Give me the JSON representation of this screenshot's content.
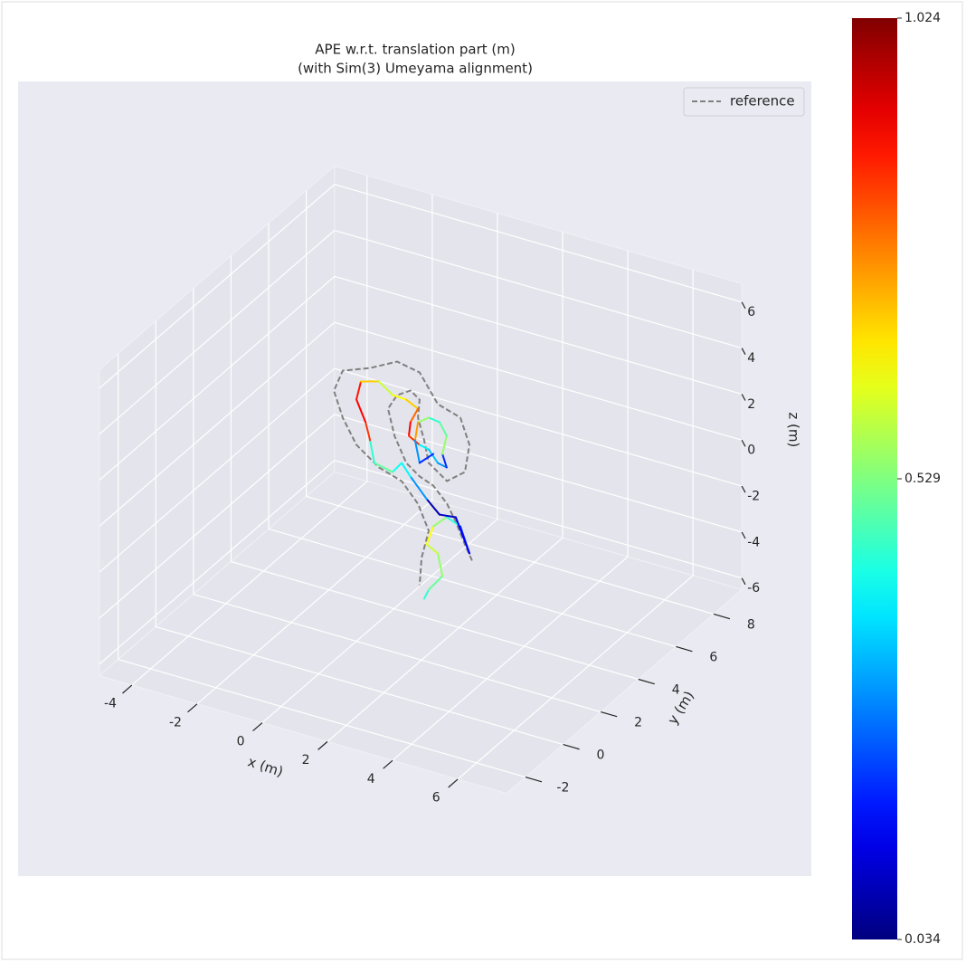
{
  "chart_data": {
    "type": "line3d",
    "title": [
      "APE w.r.t. translation part (m)",
      "(with Sim(3) Umeyama alignment)"
    ],
    "xlabel": "x (m)",
    "ylabel": "y (m)",
    "zlabel": "z (m)",
    "xlim": [
      -5,
      7.5
    ],
    "ylim": [
      -3,
      9.5
    ],
    "zlim": [
      -6.5,
      6.8
    ],
    "xticks": [
      -4,
      -2,
      0,
      2,
      4,
      6
    ],
    "yticks": [
      -2,
      0,
      2,
      4,
      6,
      8
    ],
    "zticks": [
      -6,
      -4,
      -2,
      0,
      2,
      4,
      6
    ],
    "grid": true,
    "legend": "upper right",
    "colormap": "jet",
    "colorbar": {
      "lim": [
        0.034,
        1.024
      ],
      "ticks": [
        0.034,
        0.529,
        1.024
      ]
    },
    "series": [
      {
        "name": "reference",
        "color": "#808080",
        "linestyle": "dashed",
        "x": [
          2.83,
          2.61,
          2.33,
          2.06,
          1.64,
          1.22,
          0.81,
          0.45,
          0.25,
          0.53,
          0.94,
          1.22,
          1.17,
          1.36,
          1.5,
          2.06,
          2.61,
          2.75,
          2.47,
          1.78,
          1.22,
          0.53,
          -0.3,
          -1.14,
          -1.41,
          -1.14,
          -0.72,
          -0.03,
          0.67,
          1.17,
          1.5,
          1.28,
          1.22
        ],
        "y": [
          3.25,
          3.25,
          3.25,
          3.25,
          3.25,
          3.25,
          3.25,
          3.25,
          3.25,
          3.25,
          3.25,
          3.25,
          3.25,
          3.25,
          3.25,
          3.25,
          3.25,
          3.25,
          3.25,
          3.25,
          3.25,
          3.25,
          3.25,
          3.25,
          3.25,
          3.25,
          3.25,
          3.25,
          3.25,
          3.25,
          3.25,
          3.25,
          3.25
        ],
        "z": [
          -2.72,
          -2.11,
          -1.24,
          -0.56,
          0.05,
          0.28,
          0.7,
          1.73,
          2.83,
          3.53,
          3.9,
          3.62,
          2.81,
          1.91,
          0.98,
          0.42,
          1.04,
          2.28,
          3.35,
          3.65,
          4.8,
          4.99,
          4.37,
          3.91,
          2.93,
          1.87,
          0.86,
          0.16,
          -0.15,
          -0.93,
          -1.97,
          -3.24,
          -4.45
        ]
      },
      {
        "x": [
          1.36,
          1.5,
          1.92,
          1.78,
          1.44,
          1.64,
          2.05,
          2.47,
          2.75,
          2.33,
          1.83,
          1.44,
          0.94,
          0.67,
          0.39,
          -0.17,
          -0.3,
          -0.44,
          -0.72,
          -0.58,
          -0.03,
          0.39,
          0.81,
          1.17,
          0.94,
          0.89,
          1.22,
          1.5,
          1.78,
          2.05,
          1.92,
          2.05,
          1.83,
          1.5,
          1.17,
          1.08,
          1.22,
          1.64
        ],
        "y": [
          3.25,
          3.25,
          3.25,
          3.25,
          3.25,
          3.25,
          3.25,
          3.25,
          3.25,
          3.25,
          3.25,
          3.25,
          3.25,
          3.25,
          3.25,
          3.25,
          3.25,
          3.25,
          3.25,
          3.25,
          3.25,
          3.25,
          3.25,
          3.25,
          3.25,
          3.25,
          3.25,
          3.25,
          3.25,
          3.25,
          3.25,
          3.25,
          3.25,
          3.25,
          3.25,
          3.25,
          3.25,
          3.25
        ],
        "z": [
          -4.98,
          -4.53,
          -3.77,
          -2.84,
          -2.58,
          -1.72,
          -1.15,
          -1.38,
          -2.44,
          -1.04,
          -1.13,
          -0.62,
          0.16,
          0.64,
          0.13,
          0.3,
          1.23,
          1.96,
          2.83,
          3.67,
          3.9,
          3.48,
          3.45,
          3.2,
          2.52,
          1.91,
          1.65,
          1.57,
          1.09,
          1.01,
          1.54,
          2.39,
          2.89,
          2.95,
          2.61,
          1.79,
          0.87,
          1.43
        ],
        "error": [
          0.45,
          0.5,
          0.55,
          0.6,
          0.65,
          0.55,
          0.45,
          0.2,
          0.15,
          0.1,
          0.08,
          0.3,
          0.4,
          0.42,
          0.5,
          0.45,
          0.85,
          0.9,
          0.88,
          0.7,
          0.6,
          0.65,
          0.7,
          0.8,
          0.9,
          0.85,
          0.4,
          0.35,
          0.3,
          0.2,
          0.55,
          0.5,
          0.45,
          0.55,
          0.75,
          0.3,
          0.2,
          0.4
        ]
      }
    ]
  }
}
